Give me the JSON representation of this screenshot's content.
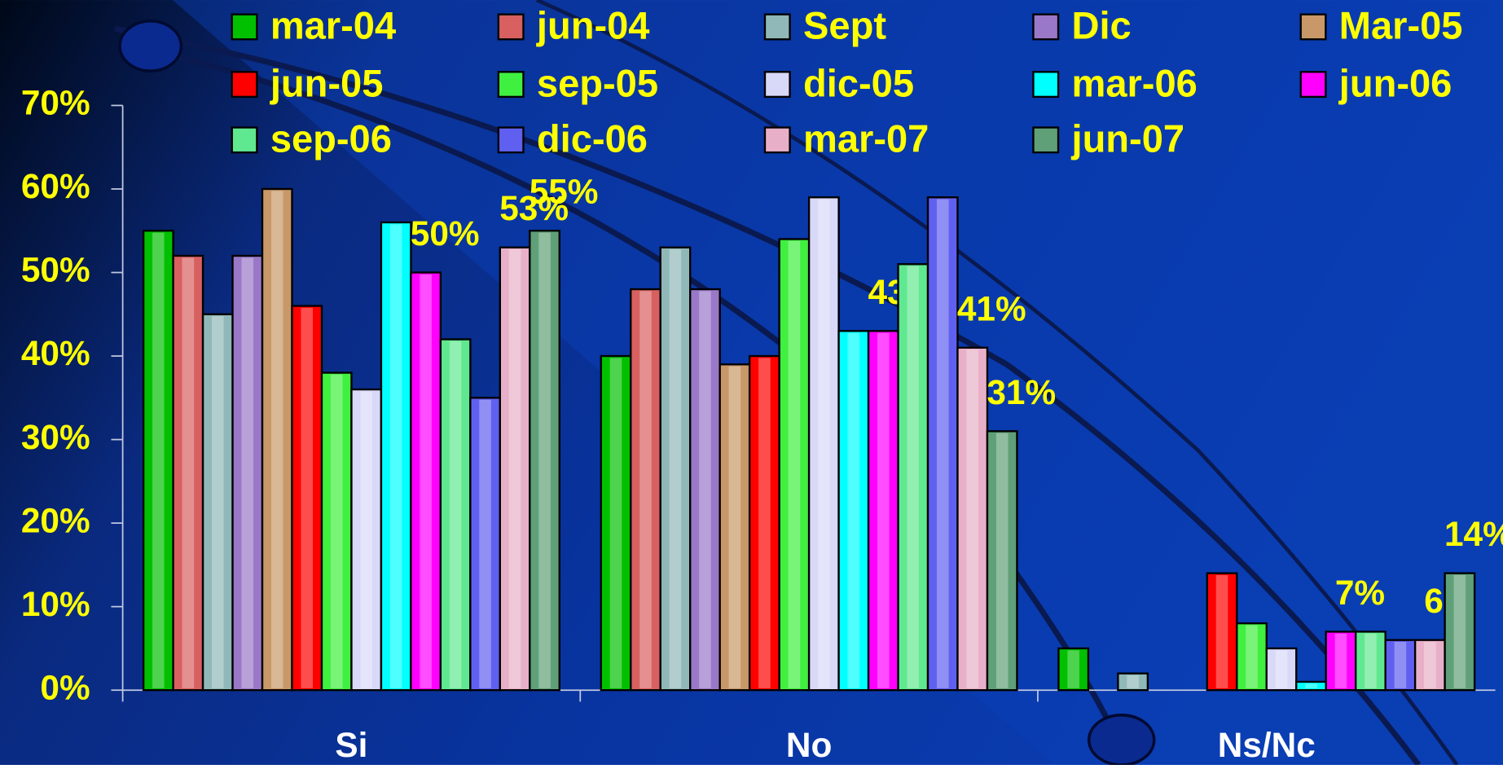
{
  "chart_data": {
    "type": "bar",
    "categories": [
      "Si",
      "No",
      "Ns/Nc"
    ],
    "ylim": [
      0,
      70
    ],
    "yticks": [
      {
        "value": 0,
        "label": "0%"
      },
      {
        "value": 10,
        "label": "10%"
      },
      {
        "value": 20,
        "label": "20%"
      },
      {
        "value": 30,
        "label": "30%"
      },
      {
        "value": 40,
        "label": "40%"
      },
      {
        "value": 50,
        "label": "50%"
      },
      {
        "value": 60,
        "label": "60%"
      },
      {
        "value": 70,
        "label": "70%"
      }
    ],
    "series": [
      {
        "name": "mar-04",
        "color": "#00c000",
        "values": [
          55,
          40,
          5
        ]
      },
      {
        "name": "jun-04",
        "color": "#d86060",
        "values": [
          52,
          48,
          null
        ]
      },
      {
        "name": "Sept",
        "color": "#90b8b8",
        "values": [
          45,
          53,
          2
        ]
      },
      {
        "name": "Dic",
        "color": "#9a78c8",
        "values": [
          52,
          48,
          null
        ]
      },
      {
        "name": "Mar-05",
        "color": "#c89868",
        "values": [
          60,
          39,
          null
        ]
      },
      {
        "name": "jun-05",
        "color": "#ff0000",
        "values": [
          46,
          40,
          14
        ]
      },
      {
        "name": "sep-05",
        "color": "#40f040",
        "values": [
          38,
          54,
          8
        ]
      },
      {
        "name": "dic-05",
        "color": "#d8d8f8",
        "values": [
          36,
          59,
          5
        ]
      },
      {
        "name": "mar-06",
        "color": "#00ffff",
        "values": [
          56,
          43,
          1
        ]
      },
      {
        "name": "jun-06",
        "color": "#ff00ff",
        "values": [
          50,
          43,
          7
        ],
        "value_labels": [
          "50%",
          "43%",
          "7%"
        ]
      },
      {
        "name": "sep-06",
        "color": "#60e890",
        "values": [
          42,
          51,
          7
        ]
      },
      {
        "name": "dic-06",
        "color": "#6060f0",
        "values": [
          35,
          59,
          6
        ]
      },
      {
        "name": "mar-07",
        "color": "#e8b0c8",
        "values": [
          53,
          41,
          6
        ],
        "value_labels": [
          "53%",
          "41%",
          "6%"
        ]
      },
      {
        "name": "jun-07",
        "color": "#60a078",
        "values": [
          55,
          31,
          14
        ],
        "value_labels": [
          "55%",
          "31%",
          "14%"
        ]
      }
    ]
  }
}
